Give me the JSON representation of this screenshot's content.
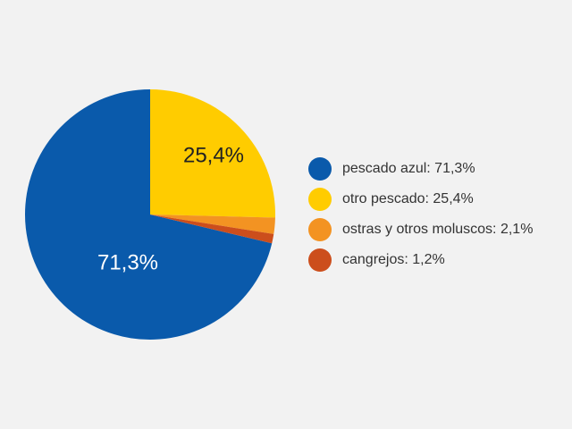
{
  "chart_data": {
    "type": "pie",
    "title": "",
    "slices": [
      {
        "label": "pescado azul: 71,3%",
        "value": 71.3,
        "color": "#0a5aab",
        "data_label": "71,3%",
        "label_color": "#ffffff"
      },
      {
        "label": "otro pescado: 25,4%",
        "value": 25.4,
        "color": "#ffcc00",
        "data_label": "25,4%",
        "label_color": "#222222"
      },
      {
        "label": "ostras y otros moluscos: 2,1%",
        "value": 2.1,
        "color": "#f39322",
        "data_label": "",
        "label_color": ""
      },
      {
        "label": "cangrejos: 1,2%",
        "value": 1.2,
        "color": "#cc4e1c",
        "data_label": "",
        "label_color": ""
      }
    ],
    "legend_position": "right"
  }
}
